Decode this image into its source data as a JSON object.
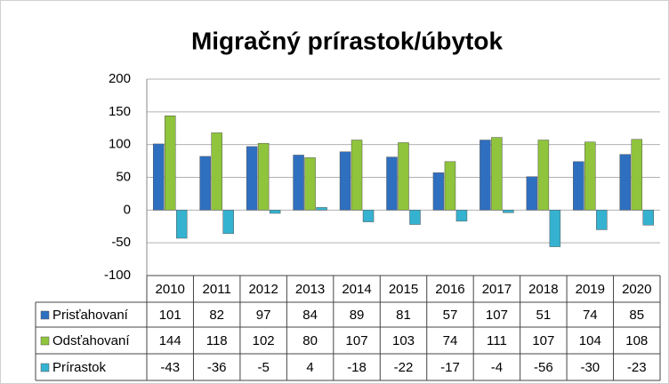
{
  "chart_data": {
    "type": "bar",
    "title": "Migračný prírastok/úbytok",
    "categories": [
      "2010",
      "2011",
      "2012",
      "2013",
      "2014",
      "2015",
      "2016",
      "2017",
      "2018",
      "2019",
      "2020"
    ],
    "series": [
      {
        "name": "Prisťahovaní",
        "color": "#2f6fc0",
        "values": [
          101,
          82,
          97,
          84,
          89,
          81,
          57,
          107,
          51,
          74,
          85
        ]
      },
      {
        "name": "Odsťahovaní",
        "color": "#8fc43c",
        "values": [
          144,
          118,
          102,
          80,
          107,
          103,
          74,
          111,
          107,
          104,
          108
        ]
      },
      {
        "name": "Prírastok",
        "color": "#35b2d0",
        "values": [
          -43,
          -36,
          -5,
          4,
          -18,
          -22,
          -17,
          -4,
          -56,
          -30,
          -23
        ]
      }
    ],
    "ylim": [
      -100,
      200
    ],
    "yticks": [
      -100,
      -50,
      0,
      50,
      100,
      150,
      200
    ],
    "grid": true
  }
}
